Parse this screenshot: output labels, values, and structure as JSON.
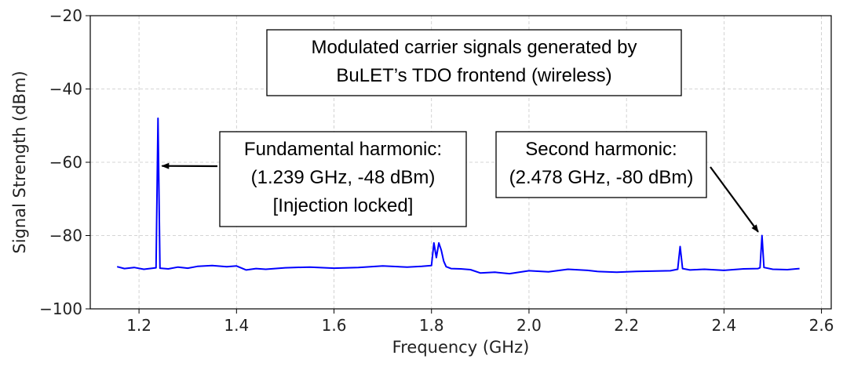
{
  "chart_data": {
    "type": "line",
    "title": "",
    "xlabel": "Frequency (GHz)",
    "ylabel": "Signal Strength (dBm)",
    "xlim": [
      1.1,
      2.62
    ],
    "ylim": [
      -100,
      -20
    ],
    "x_ticks": [
      "1.2",
      "1.4",
      "1.6",
      "1.8",
      "2.0",
      "2.2",
      "2.4",
      "2.6"
    ],
    "y_ticks": [
      "−20",
      "−40",
      "−60",
      "−80",
      "−100"
    ],
    "grid": true,
    "series": [
      {
        "color": "#0000ff",
        "x": [
          1.155,
          1.17,
          1.19,
          1.21,
          1.235,
          1.239,
          1.243,
          1.26,
          1.28,
          1.3,
          1.32,
          1.35,
          1.38,
          1.4,
          1.42,
          1.44,
          1.46,
          1.5,
          1.55,
          1.6,
          1.65,
          1.7,
          1.75,
          1.78,
          1.8,
          1.805,
          1.81,
          1.815,
          1.82,
          1.825,
          1.83,
          1.84,
          1.86,
          1.88,
          1.9,
          1.93,
          1.96,
          2.0,
          2.04,
          2.08,
          2.12,
          2.14,
          2.18,
          2.22,
          2.26,
          2.29,
          2.305,
          2.31,
          2.315,
          2.33,
          2.36,
          2.4,
          2.44,
          2.47,
          2.474,
          2.478,
          2.482,
          2.5,
          2.53,
          2.555
        ],
        "y": [
          -88.5,
          -89.0,
          -88.7,
          -89.2,
          -88.8,
          -48,
          -88.9,
          -89.1,
          -88.6,
          -88.9,
          -88.4,
          -88.2,
          -88.5,
          -88.3,
          -89.4,
          -89.0,
          -89.2,
          -88.8,
          -88.6,
          -88.9,
          -88.7,
          -88.3,
          -88.6,
          -88.4,
          -88.2,
          -82,
          -86,
          -82,
          -84,
          -87,
          -88.5,
          -89.0,
          -89.1,
          -89.3,
          -90.2,
          -90.0,
          -90.4,
          -89.6,
          -89.9,
          -89.2,
          -89.5,
          -89.8,
          -90.0,
          -89.8,
          -89.7,
          -89.6,
          -89.2,
          -83,
          -89.0,
          -89.4,
          -89.2,
          -89.5,
          -89.1,
          -89.0,
          -88.8,
          -80,
          -88.7,
          -89.2,
          -89.3,
          -89.0
        ]
      }
    ],
    "annotations": [
      {
        "lines": [
          "Modulated carrier signals generated by",
          "BuLET’s TDO frontend (wireless)"
        ],
        "arrow": false
      },
      {
        "lines": [
          "Fundamental harmonic:",
          "(1.239 GHz, -48 dBm)",
          "[Injection locked]"
        ],
        "arrow": true,
        "target": [
          1.239,
          -61
        ]
      },
      {
        "lines": [
          "Second harmonic:",
          "(2.478 GHz, -80 dBm)"
        ],
        "arrow": true,
        "target": [
          2.475,
          -79
        ]
      }
    ]
  }
}
